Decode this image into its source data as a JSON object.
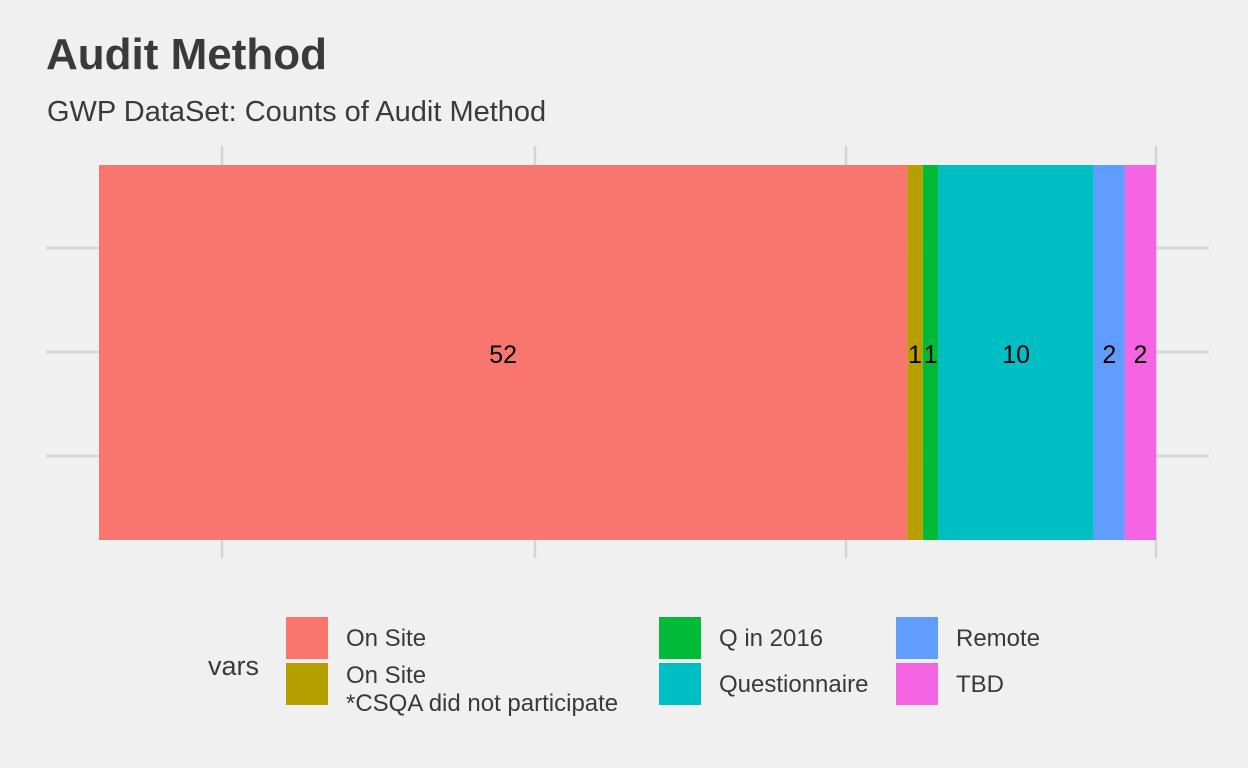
{
  "chart_data": {
    "type": "bar",
    "orientation": "horizontal-stacked",
    "title": "Audit Method",
    "subtitle": "GWP DataSet: Counts of Audit Method",
    "xlabel": "",
    "ylabel": "",
    "legend_title": "vars",
    "legend_position": "bottom",
    "grid": true,
    "series": [
      {
        "name": "On Site",
        "value": 52,
        "label": "52",
        "color": "#f8766d"
      },
      {
        "name": "On Site\n*CSQA did not participate",
        "value": 1,
        "label": "1",
        "color": "#b79f00"
      },
      {
        "name": "Q in 2016",
        "value": 1,
        "label": "1",
        "color": "#00ba38"
      },
      {
        "name": "Questionnaire",
        "value": 10,
        "label": "10",
        "color": "#00bfc4"
      },
      {
        "name": "Remote",
        "value": 2,
        "label": "2",
        "color": "#619cff"
      },
      {
        "name": "TBD",
        "value": 2,
        "label": "2",
        "color": "#f564e3"
      }
    ]
  }
}
